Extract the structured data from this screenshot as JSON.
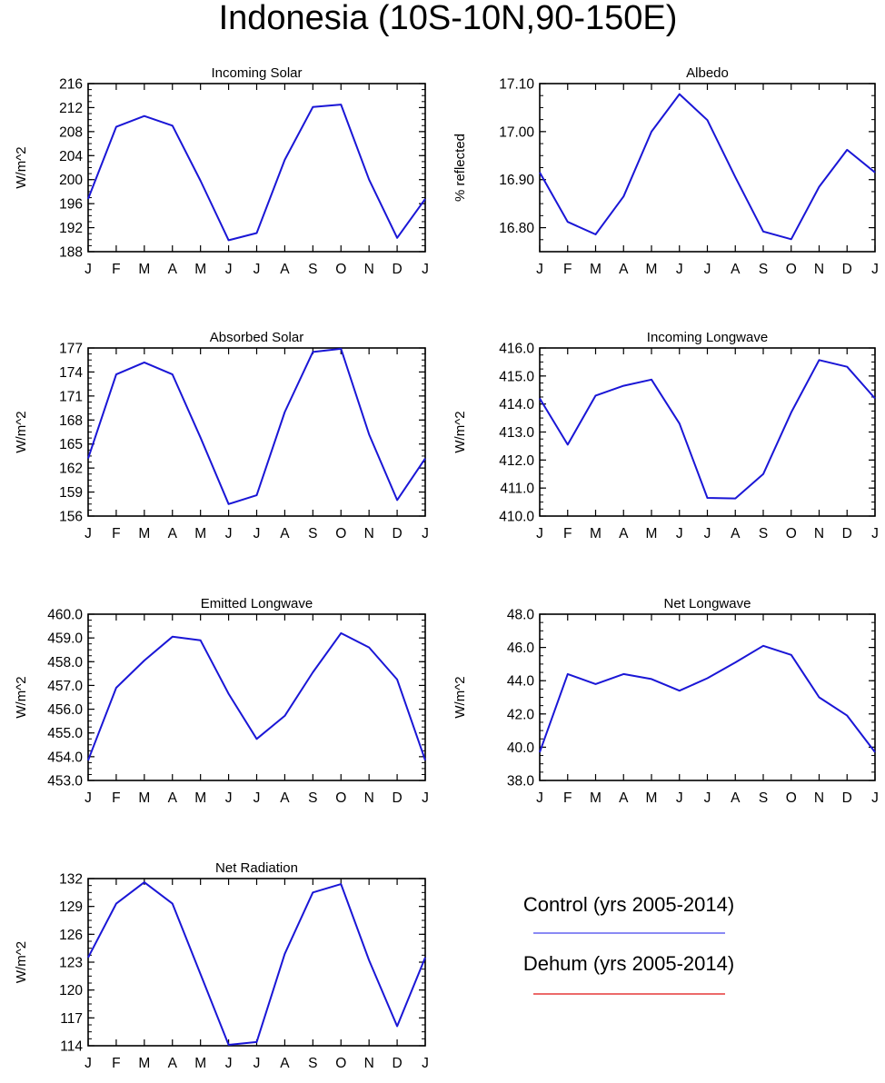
{
  "page": {
    "title": "Indonesia (10S-10N,90-150E)"
  },
  "months": [
    "J",
    "F",
    "M",
    "A",
    "M",
    "J",
    "J",
    "A",
    "S",
    "O",
    "N",
    "D",
    "J"
  ],
  "colors": {
    "control": "#1a16d6",
    "dehum": "#e01010",
    "axis": "#000000"
  },
  "legend": {
    "items": [
      {
        "name": "control",
        "label": "Control (yrs 2005-2014)",
        "color": "#4444ee"
      },
      {
        "name": "dehum",
        "label": "Dehum (yrs 2005-2014)",
        "color": "#e01010"
      }
    ]
  },
  "chart_data": [
    {
      "type": "line",
      "title": "Incoming Solar",
      "ylabel": "W/m^2",
      "ylim": [
        188,
        216
      ],
      "yticks": [
        188,
        192,
        196,
        200,
        204,
        208,
        212,
        216
      ],
      "ytick_labels": [
        "188",
        "192",
        "196",
        "200",
        "204",
        "208",
        "212",
        "216"
      ],
      "categories": [
        "J",
        "F",
        "M",
        "A",
        "M",
        "J",
        "J",
        "A",
        "S",
        "O",
        "N",
        "D",
        "J"
      ],
      "series": [
        {
          "name": "Control (yrs 2005-2014)",
          "values": [
            196.8,
            208.8,
            210.6,
            209.0,
            199.8,
            189.9,
            191.1,
            203.3,
            212.1,
            212.5,
            200.0,
            190.3,
            196.8
          ]
        }
      ]
    },
    {
      "type": "line",
      "title": "Albedo",
      "ylabel": "% reflected",
      "ylim": [
        16.75,
        17.1
      ],
      "yticks": [
        16.8,
        16.9,
        17.0,
        17.1
      ],
      "ytick_labels": [
        "16.80",
        "16.90",
        "17.00",
        "17.10"
      ],
      "categories": [
        "J",
        "F",
        "M",
        "A",
        "M",
        "J",
        "J",
        "A",
        "S",
        "O",
        "N",
        "D",
        "J"
      ],
      "series": [
        {
          "name": "Control (yrs 2005-2014)",
          "values": [
            16.915,
            16.812,
            16.786,
            16.865,
            17.0,
            17.078,
            17.024,
            16.905,
            16.792,
            16.776,
            16.885,
            16.962,
            16.915
          ]
        }
      ]
    },
    {
      "type": "line",
      "title": "Absorbed Solar",
      "ylabel": "W/m^2",
      "ylim": [
        156,
        177
      ],
      "yticks": [
        156,
        159,
        162,
        165,
        168,
        171,
        174,
        177
      ],
      "ytick_labels": [
        "156",
        "159",
        "162",
        "165",
        "168",
        "171",
        "174",
        "177"
      ],
      "categories": [
        "J",
        "F",
        "M",
        "A",
        "M",
        "J",
        "J",
        "A",
        "S",
        "O",
        "N",
        "D",
        "J"
      ],
      "series": [
        {
          "name": "Control (yrs 2005-2014)",
          "values": [
            163.2,
            173.7,
            175.2,
            173.7,
            165.8,
            157.5,
            158.6,
            169.0,
            176.5,
            176.9,
            166.2,
            158.0,
            163.2
          ]
        }
      ]
    },
    {
      "type": "line",
      "title": "Incoming Longwave",
      "ylabel": "W/m^2",
      "ylim": [
        410.0,
        416.0
      ],
      "yticks": [
        410,
        411,
        412,
        413,
        414,
        415,
        416
      ],
      "ytick_labels": [
        "410.0",
        "411.0",
        "412.0",
        "413.0",
        "414.0",
        "415.0",
        "416.0"
      ],
      "categories": [
        "J",
        "F",
        "M",
        "A",
        "M",
        "J",
        "J",
        "A",
        "S",
        "O",
        "N",
        "D",
        "J"
      ],
      "series": [
        {
          "name": "Control (yrs 2005-2014)",
          "values": [
            414.2,
            412.55,
            414.3,
            414.65,
            414.87,
            413.3,
            410.65,
            410.63,
            411.5,
            413.7,
            415.57,
            415.33,
            414.2
          ]
        }
      ]
    },
    {
      "type": "line",
      "title": "Emitted Longwave",
      "ylabel": "W/m^2",
      "ylim": [
        453.0,
        460.0
      ],
      "yticks": [
        453,
        454,
        455,
        456,
        457,
        458,
        459,
        460
      ],
      "ytick_labels": [
        "453.0",
        "454.0",
        "455.0",
        "456.0",
        "457.0",
        "458.0",
        "459.0",
        "460.0"
      ],
      "categories": [
        "J",
        "F",
        "M",
        "A",
        "M",
        "J",
        "J",
        "A",
        "S",
        "O",
        "N",
        "D",
        "J"
      ],
      "series": [
        {
          "name": "Control (yrs 2005-2014)",
          "values": [
            453.85,
            456.9,
            458.05,
            459.05,
            458.9,
            456.65,
            454.75,
            455.72,
            457.55,
            459.2,
            458.6,
            457.25,
            453.85
          ]
        }
      ]
    },
    {
      "type": "line",
      "title": "Net Longwave",
      "ylabel": "W/m^2",
      "ylim": [
        38.0,
        48.0
      ],
      "yticks": [
        38,
        40,
        42,
        44,
        46,
        48
      ],
      "ytick_labels": [
        "38.0",
        "40.0",
        "42.0",
        "44.0",
        "46.0",
        "48.0"
      ],
      "categories": [
        "J",
        "F",
        "M",
        "A",
        "M",
        "J",
        "J",
        "A",
        "S",
        "O",
        "N",
        "D",
        "J"
      ],
      "series": [
        {
          "name": "Control (yrs 2005-2014)",
          "values": [
            39.7,
            44.4,
            43.8,
            44.4,
            44.1,
            43.4,
            44.15,
            45.1,
            46.1,
            45.55,
            43.0,
            41.9,
            39.7
          ]
        }
      ]
    },
    {
      "type": "line",
      "title": "Net Radiation",
      "ylabel": "W/m^2",
      "ylim": [
        114,
        132
      ],
      "yticks": [
        114,
        117,
        120,
        123,
        126,
        129,
        132
      ],
      "ytick_labels": [
        "114",
        "117",
        "120",
        "123",
        "126",
        "129",
        "132"
      ],
      "categories": [
        "J",
        "F",
        "M",
        "A",
        "M",
        "J",
        "J",
        "A",
        "S",
        "O",
        "N",
        "D",
        "J"
      ],
      "series": [
        {
          "name": "Control (yrs 2005-2014)",
          "values": [
            123.5,
            129.3,
            131.6,
            129.3,
            121.7,
            114.1,
            114.4,
            123.9,
            130.5,
            131.4,
            123.2,
            116.1,
            123.5
          ]
        }
      ]
    }
  ]
}
